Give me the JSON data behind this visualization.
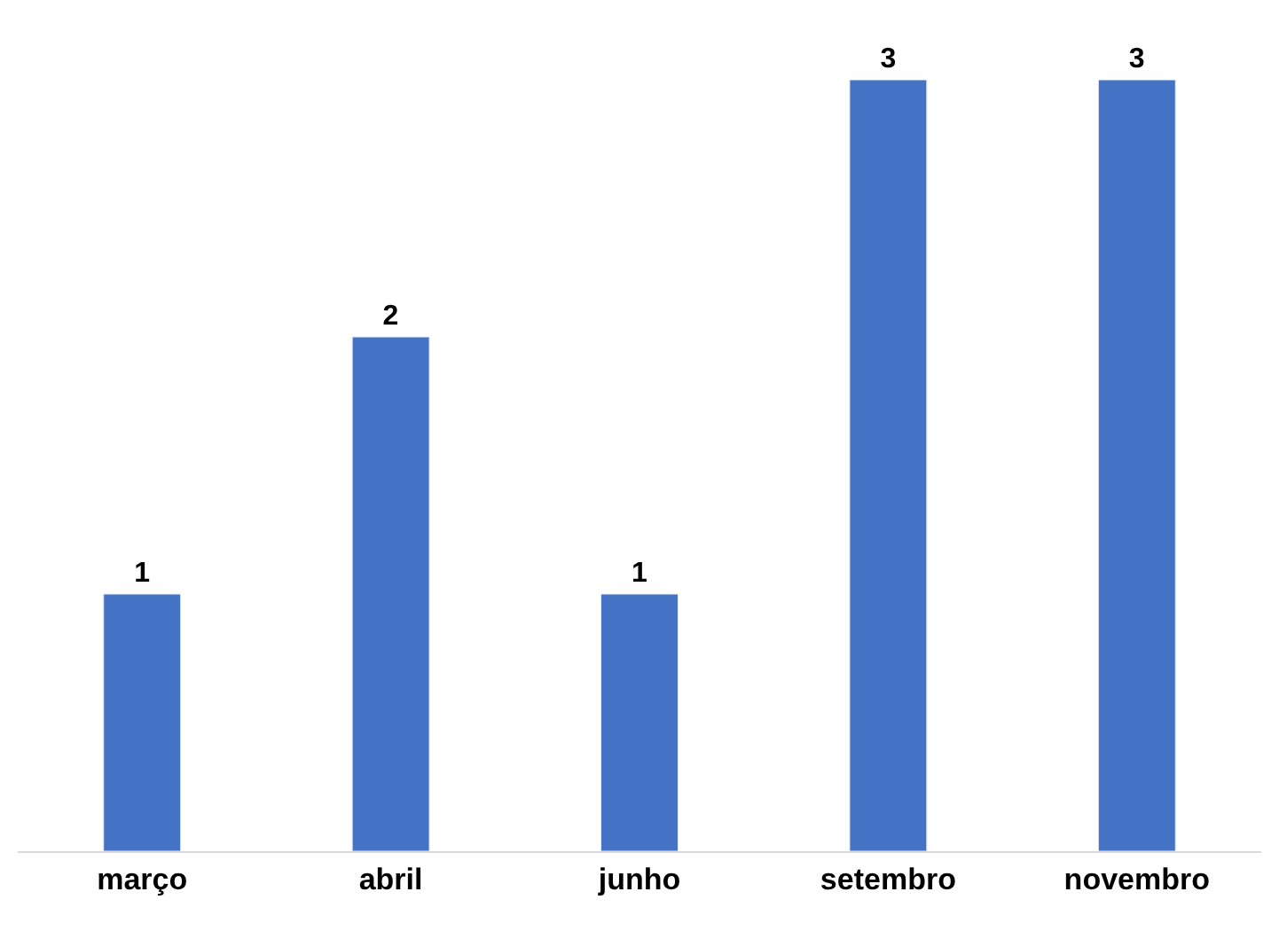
{
  "chart_data": {
    "type": "bar",
    "categories": [
      "março",
      "abril",
      "junho",
      "setembro",
      "novembro"
    ],
    "values": [
      1,
      2,
      1,
      3,
      3
    ],
    "color": "#4472c4",
    "ylim": [
      0,
      3
    ],
    "data_labels": true
  }
}
